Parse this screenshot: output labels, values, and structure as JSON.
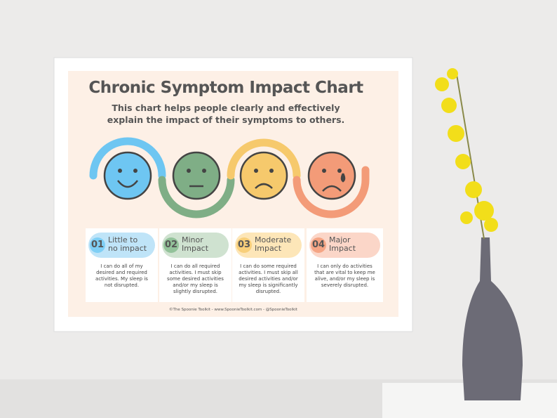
{
  "poster": {
    "title": "Chronic Symptom Impact Chart",
    "subtitle": [
      "This chart helps people clearly and effectively",
      "explain the impact of their symptoms to others."
    ],
    "levels": [
      {
        "number": "01",
        "label": [
          "Little to",
          "no impact"
        ],
        "description": "I can do all of my desired and required activities. My sleep is not disrupted."
      },
      {
        "number": "02",
        "label": [
          "Minor",
          "Impact"
        ],
        "description": "I can do all required activities. I must skip some desired activities and/or my sleep is slightly disrupted."
      },
      {
        "number": "03",
        "label": [
          "Moderate",
          "Impact"
        ],
        "description": "I can do some required activities. I must skip all desired activities and/or my sleep is significantly disrupted."
      },
      {
        "number": "04",
        "label": [
          "Major",
          "Impact"
        ],
        "description": "I can only do activities that are vital to keep me alive, and/or my sleep is severely disrupted."
      }
    ],
    "footer": "©The Spoonie Toolkit - www.SpoonieToolkit.com - @SpoonieToolkit"
  }
}
